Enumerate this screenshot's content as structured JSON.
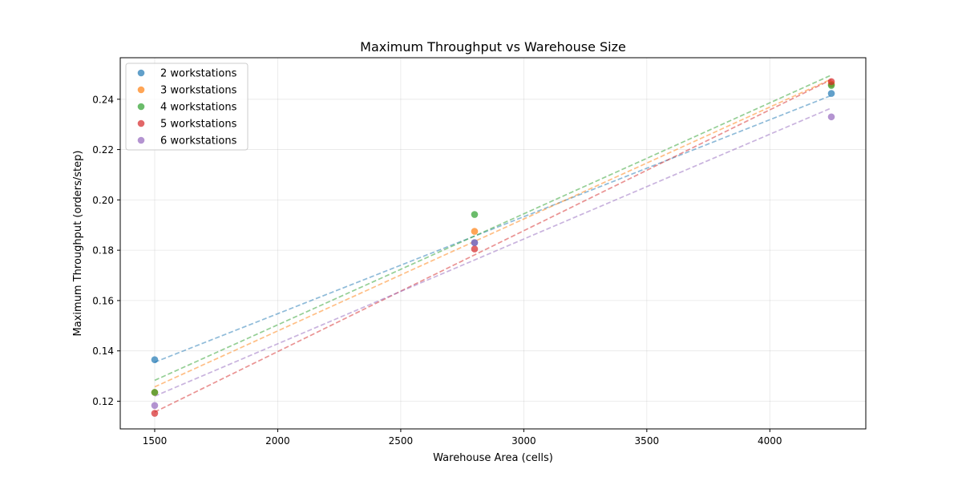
{
  "chart_data": {
    "type": "scatter",
    "title": "Maximum Throughput vs Warehouse Size",
    "xlabel": "Warehouse Area (cells)",
    "ylabel": "Maximum Throughput (orders/step)",
    "xlim": [
      1360,
      4390
    ],
    "ylim": [
      0.109,
      0.2565
    ],
    "xticks": [
      1500,
      2000,
      2500,
      3000,
      3500,
      4000
    ],
    "yticks": [
      0.12,
      0.14,
      0.16,
      0.18,
      0.2,
      0.22,
      0.24
    ],
    "grid": true,
    "legend_position": "top-left",
    "trendlines": "dashed linear fit per series",
    "series": [
      {
        "name": "2 workstations",
        "color": "#1f77b4",
        "x": [
          1500,
          2800,
          4250
        ],
        "y": [
          0.1365,
          0.183,
          0.2423
        ],
        "fit": [
          [
            1500,
            0.1355
          ],
          [
            4250,
            0.2415
          ]
        ]
      },
      {
        "name": "3 workstations",
        "color": "#ff7f0e",
        "x": [
          1500,
          2800,
          4250
        ],
        "y": [
          0.1235,
          0.1875,
          0.246
        ],
        "fit": [
          [
            1500,
            0.1257
          ],
          [
            4250,
            0.248
          ]
        ]
      },
      {
        "name": "4 workstations",
        "color": "#2ca02c",
        "x": [
          1500,
          2800,
          4250
        ],
        "y": [
          0.1235,
          0.1942,
          0.2455
        ],
        "fit": [
          [
            1500,
            0.1283
          ],
          [
            4250,
            0.2496
          ]
        ]
      },
      {
        "name": "5 workstations",
        "color": "#d62728",
        "x": [
          1500,
          2800,
          4250
        ],
        "y": [
          0.1152,
          0.1805,
          0.247
        ],
        "fit": [
          [
            1500,
            0.1157
          ],
          [
            4250,
            0.2478
          ]
        ]
      },
      {
        "name": "6 workstations",
        "color": "#9467bd",
        "x": [
          1500,
          2800,
          4250
        ],
        "y": [
          0.1183,
          0.183,
          0.233
        ],
        "fit": [
          [
            1500,
            0.122
          ],
          [
            4250,
            0.2365
          ]
        ]
      }
    ]
  }
}
